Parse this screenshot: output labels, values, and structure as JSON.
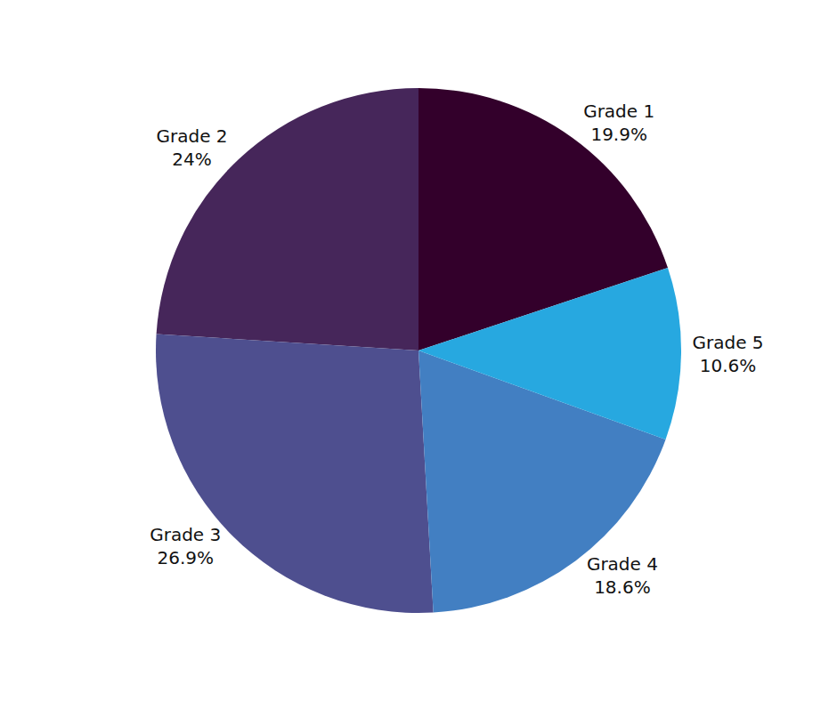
{
  "chart_data": {
    "type": "pie",
    "categories": [
      "Grade 1",
      "Grade 2",
      "Grade 3",
      "Grade 4",
      "Grade 5"
    ],
    "values": [
      19.9,
      24,
      26.9,
      18.6,
      10.6
    ],
    "value_labels": [
      "19.9%",
      "24%",
      "26.9%",
      "18.6%",
      "10.6%"
    ],
    "colors": [
      "#33002b",
      "#46265a",
      "#4e4f8f",
      "#427fc2",
      "#27a8e0"
    ],
    "data_labels": true
  }
}
